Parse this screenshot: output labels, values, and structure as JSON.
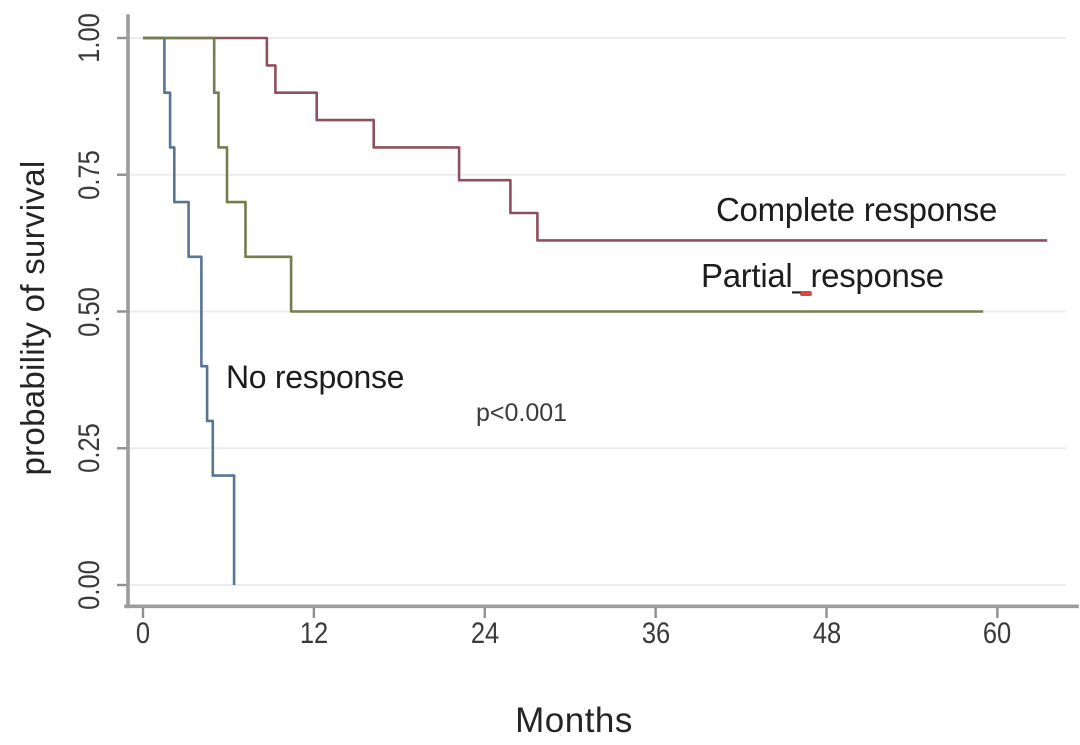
{
  "chart_data": {
    "type": "line",
    "subtype": "kaplan_meier_step",
    "title": "",
    "xlabel": "Months",
    "ylabel": "probability of survival",
    "xlim": [
      0,
      65
    ],
    "ylim": [
      0.0,
      1.0
    ],
    "grid": "horizontal_only",
    "legend": "direct_labels_on_plot",
    "x_ticks": [
      0,
      12,
      24,
      36,
      48,
      60
    ],
    "x_tick_labels": [
      "0",
      "12",
      "24",
      "36",
      "48",
      "60"
    ],
    "y_ticks": [
      1.0,
      0.75,
      0.5,
      0.25,
      0.0
    ],
    "y_tick_labels": [
      "1.00",
      "0.75",
      "0.50",
      "0.25",
      "0.00"
    ],
    "annotation": {
      "text": "p<0.001",
      "month": 23.4,
      "probability": 0.32
    },
    "series": [
      {
        "name": "No response",
        "label_text": "No response",
        "color": "#597592",
        "end_month": 6.4,
        "points": [
          [
            0,
            1.0
          ],
          [
            1.5,
            0.9
          ],
          [
            1.9,
            0.8
          ],
          [
            2.2,
            0.7
          ],
          [
            3.2,
            0.6
          ],
          [
            4.1,
            0.4
          ],
          [
            4.5,
            0.3
          ],
          [
            4.9,
            0.2
          ],
          [
            6.4,
            0.0
          ]
        ]
      },
      {
        "name": "Complete response",
        "label_text": "Complete response",
        "color": "#8e505f",
        "end_month": 63.5,
        "points": [
          [
            0,
            1.0
          ],
          [
            8.7,
            0.95
          ],
          [
            9.3,
            0.9
          ],
          [
            12.2,
            0.85
          ],
          [
            16.2,
            0.8
          ],
          [
            22.2,
            0.74
          ],
          [
            25.8,
            0.68
          ],
          [
            27.7,
            0.63
          ]
        ]
      },
      {
        "name": "Partial response",
        "label_text": "Partial_response",
        "color": "#757d4d",
        "end_month": 59.0,
        "points": [
          [
            0,
            1.0
          ],
          [
            5.0,
            0.9
          ],
          [
            5.3,
            0.8
          ],
          [
            5.9,
            0.7
          ],
          [
            7.2,
            0.6
          ],
          [
            10.4,
            0.5
          ]
        ]
      }
    ]
  },
  "labels": {
    "ylabel": "probability of survival",
    "xlabel": "Months",
    "complete": "Complete response",
    "partial": "Partial_response",
    "no_response": "No response",
    "p_value": "p<0.001"
  },
  "colors": {
    "grid": "#e9edf0",
    "axis": "#9c9c9c",
    "tick": "#8f8f8f",
    "text": "#202020",
    "tick_text": "#3a3a3a",
    "no_response": "#597592",
    "complete_response": "#8e505f",
    "partial_response": "#757d4d",
    "spellcheck": "#e04545"
  }
}
